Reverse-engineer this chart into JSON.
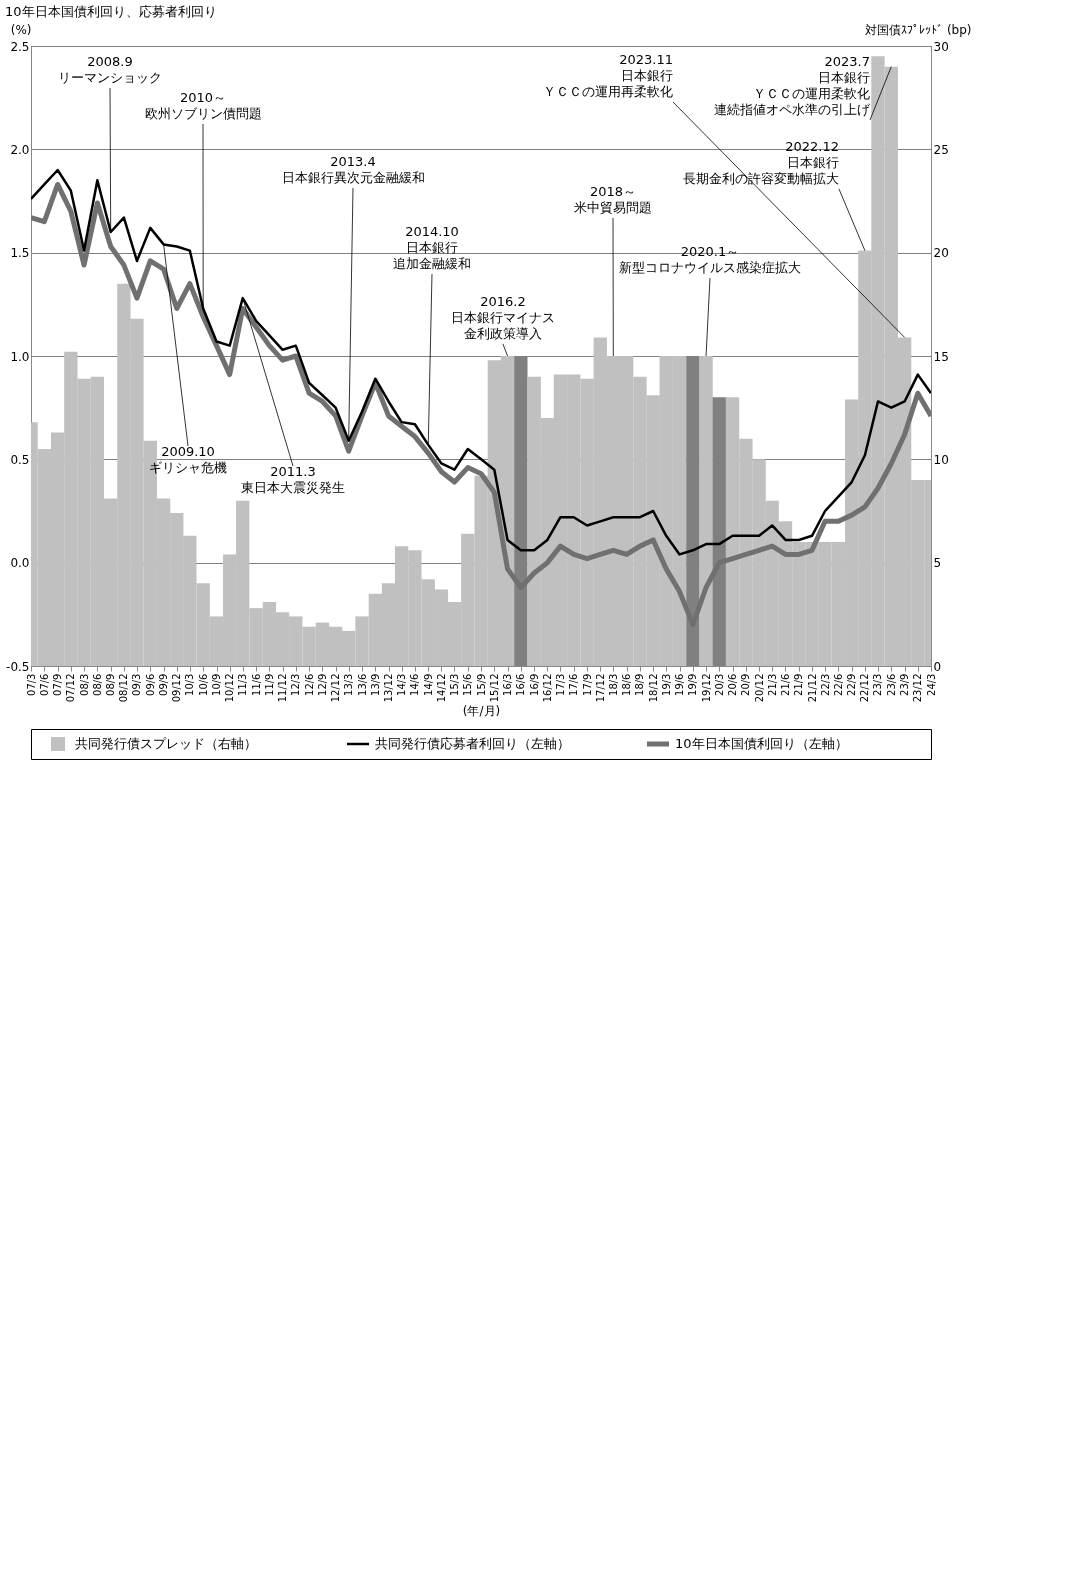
{
  "chart_data": {
    "type": "line",
    "title": "10年日本国債利回り、応募者利回り",
    "ylabel": "(%)",
    "y2label": "対国債ｽﾌﾟﾚｯﾄﾞ (bp)",
    "xlabel": "(年/月)",
    "x": [
      "2007-03",
      "2007-06",
      "2007-09",
      "2007-12",
      "2008-03",
      "2008-06",
      "2008-09",
      "2008-12",
      "2009-03",
      "2009-06",
      "2009-09",
      "2009-12",
      "2010-03",
      "2010-06",
      "2010-09",
      "2010-12",
      "2011-03",
      "2011-06",
      "2011-09",
      "2011-12",
      "2012-03",
      "2012-06",
      "2012-09",
      "2012-12",
      "2013-03",
      "2013-06",
      "2013-09",
      "2013-12",
      "2014-03",
      "2014-06",
      "2014-09",
      "2014-12",
      "2015-03",
      "2015-06",
      "2015-09",
      "2015-12",
      "2016-03",
      "2016-06",
      "2016-09",
      "2016-12",
      "2017-03",
      "2017-06",
      "2017-09",
      "2017-12",
      "2018-03",
      "2018-06",
      "2018-09",
      "2018-12",
      "2019-03",
      "2019-06",
      "2019-09",
      "2019-12",
      "2020-03",
      "2020-06",
      "2020-09",
      "2020-12",
      "2021-03",
      "2021-06",
      "2021-09",
      "2021-12",
      "2022-03",
      "2022-06",
      "2022-09",
      "2022-12",
      "2023-03",
      "2023-06",
      "2023-09",
      "2023-12",
      "2024-03"
    ],
    "series": [
      {
        "name": "共同発行債スプレッド（右軸）",
        "type": "bar",
        "axis": "y2",
        "color": "#c0c0c0",
        "colors": [
          "#c0c0c0",
          "#c0c0c0",
          "#c0c0c0",
          "#c0c0c0",
          "#c0c0c0",
          "#c0c0c0",
          "#c0c0c0",
          "#c0c0c0",
          "#c0c0c0",
          "#c0c0c0",
          "#c0c0c0",
          "#c0c0c0",
          "#c0c0c0",
          "#c0c0c0",
          "#c0c0c0",
          "#c0c0c0",
          "#c0c0c0",
          "#c0c0c0",
          "#c0c0c0",
          "#c0c0c0",
          "#c0c0c0",
          "#c0c0c0",
          "#c0c0c0",
          "#c0c0c0",
          "#c0c0c0",
          "#c0c0c0",
          "#c0c0c0",
          "#c0c0c0",
          "#c0c0c0",
          "#c0c0c0",
          "#c0c0c0",
          "#c0c0c0",
          "#c0c0c0",
          "#c0c0c0",
          "#c0c0c0",
          "#c0c0c0",
          "#c0c0c0",
          "#808080",
          "#c0c0c0",
          "#c0c0c0",
          "#c0c0c0",
          "#c0c0c0",
          "#c0c0c0",
          "#c0c0c0",
          "#c0c0c0",
          "#c0c0c0",
          "#c0c0c0",
          "#c0c0c0",
          "#c0c0c0",
          "#c0c0c0",
          "#808080",
          "#c0c0c0",
          "#808080",
          "#c0c0c0",
          "#c0c0c0",
          "#c0c0c0",
          "#c0c0c0",
          "#c0c0c0",
          "#c0c0c0",
          "#c0c0c0",
          "#c0c0c0",
          "#c0c0c0",
          "#c0c0c0",
          "#c0c0c0",
          "#c0c0c0",
          "#c0c0c0",
          "#c0c0c0",
          "#c0c0c0",
          "#c0c0c0"
        ],
        "values": [
          11.8,
          10.5,
          11.3,
          15.2,
          13.9,
          14.0,
          8.1,
          18.5,
          16.8,
          10.9,
          8.1,
          7.4,
          6.3,
          4.0,
          2.4,
          5.4,
          8.0,
          2.8,
          3.1,
          2.6,
          2.4,
          1.9,
          2.1,
          1.9,
          1.7,
          2.4,
          3.5,
          4.0,
          5.8,
          5.6,
          4.2,
          3.7,
          3.1,
          6.4,
          9.2,
          14.8,
          15.0,
          15.0,
          14.0,
          12.0,
          14.1,
          14.1,
          13.9,
          15.9,
          15.0,
          15.0,
          14.0,
          13.1,
          15.0,
          15.0,
          15.0,
          15.0,
          13.0,
          13.0,
          11.0,
          10.0,
          8.0,
          7.0,
          6.0,
          6.0,
          6.0,
          6.0,
          12.9,
          20.1,
          29.5,
          29.0,
          15.9,
          9.0,
          9.0
        ]
      },
      {
        "name": "共同発行債応募者利回り（左軸）",
        "color": "#000000",
        "values": [
          1.76,
          1.83,
          1.9,
          1.8,
          1.51,
          1.85,
          1.6,
          1.67,
          1.46,
          1.62,
          1.54,
          1.53,
          1.51,
          1.23,
          1.07,
          1.05,
          1.28,
          1.17,
          1.1,
          1.03,
          1.05,
          0.87,
          0.81,
          0.75,
          0.59,
          0.73,
          0.89,
          0.78,
          0.68,
          0.67,
          0.57,
          0.48,
          0.45,
          0.55,
          0.5,
          0.45,
          0.11,
          0.06,
          0.06,
          0.11,
          0.22,
          0.22,
          0.18,
          0.2,
          0.22,
          0.22,
          0.22,
          0.25,
          0.13,
          0.04,
          0.06,
          0.09,
          0.09,
          0.13,
          0.13,
          0.13,
          0.18,
          0.11,
          0.11,
          0.13,
          0.25,
          0.32,
          0.39,
          0.52,
          0.78,
          0.75,
          0.78,
          0.91,
          0.82
        ]
      },
      {
        "name": "10年日本国債利回り（左軸）",
        "color": "#707070",
        "values": [
          1.67,
          1.65,
          1.83,
          1.7,
          1.44,
          1.74,
          1.53,
          1.44,
          1.28,
          1.46,
          1.42,
          1.23,
          1.35,
          1.19,
          1.05,
          0.91,
          1.23,
          1.14,
          1.05,
          0.98,
          1.0,
          0.82,
          0.78,
          0.71,
          0.54,
          0.71,
          0.87,
          0.71,
          0.66,
          0.61,
          0.53,
          0.44,
          0.39,
          0.46,
          0.43,
          0.34,
          -0.03,
          -0.12,
          -0.05,
          0.0,
          0.08,
          0.04,
          0.02,
          0.04,
          0.06,
          0.04,
          0.08,
          0.11,
          -0.03,
          -0.14,
          -0.3,
          -0.12,
          0.0,
          0.02,
          0.04,
          0.06,
          0.08,
          0.04,
          0.04,
          0.06,
          0.2,
          0.2,
          0.23,
          0.27,
          0.36,
          0.48,
          0.62,
          0.82,
          0.71
        ]
      }
    ],
    "xlim": [
      "2007-03",
      "2024-03"
    ],
    "xticks": [
      {
        "value": "2007-03",
        "label": "07/3"
      },
      {
        "value": "2007-06",
        "label": "07/6"
      },
      {
        "value": "2007-09",
        "label": "07/9"
      },
      {
        "value": "2007-12",
        "label": "07/12"
      },
      {
        "value": "2008-03",
        "label": "08/3"
      },
      {
        "value": "2008-06",
        "label": "08/6"
      },
      {
        "value": "2008-09",
        "label": "08/9"
      },
      {
        "value": "2008-12",
        "label": "08/12"
      },
      {
        "value": "2009-03",
        "label": "09/3"
      },
      {
        "value": "2009-06",
        "label": "09/6"
      },
      {
        "value": "2009-09",
        "label": "09/9"
      },
      {
        "value": "2009-12",
        "label": "09/12"
      },
      {
        "value": "2010-03",
        "label": "10/3"
      },
      {
        "value": "2010-06",
        "label": "10/6"
      },
      {
        "value": "2010-09",
        "label": "10/9"
      },
      {
        "value": "2010-12",
        "label": "10/12"
      },
      {
        "value": "2011-03",
        "label": "11/3"
      },
      {
        "value": "2011-06",
        "label": "11/6"
      },
      {
        "value": "2011-09",
        "label": "11/9"
      },
      {
        "value": "2011-12",
        "label": "11/12"
      },
      {
        "value": "2012-03",
        "label": "12/3"
      },
      {
        "value": "2012-06",
        "label": "12/6"
      },
      {
        "value": "2012-09",
        "label": "12/9"
      },
      {
        "value": "2012-12",
        "label": "12/12"
      },
      {
        "value": "2013-03",
        "label": "13/3"
      },
      {
        "value": "2013-06",
        "label": "13/6"
      },
      {
        "value": "2013-09",
        "label": "13/9"
      },
      {
        "value": "2013-12",
        "label": "13/12"
      },
      {
        "value": "2014-03",
        "label": "14/3"
      },
      {
        "value": "2014-06",
        "label": "14/6"
      },
      {
        "value": "2014-09",
        "label": "14/9"
      },
      {
        "value": "2014-12",
        "label": "14/12"
      },
      {
        "value": "2015-03",
        "label": "15/3"
      },
      {
        "value": "2015-06",
        "label": "15/6"
      },
      {
        "value": "2015-09",
        "label": "15/9"
      },
      {
        "value": "2015-12",
        "label": "15/12"
      },
      {
        "value": "2016-03",
        "label": "16/3"
      },
      {
        "value": "2016-06",
        "label": "16/6"
      },
      {
        "value": "2016-09",
        "label": "16/9"
      },
      {
        "value": "2016-12",
        "label": "16/12"
      },
      {
        "value": "2017-03",
        "label": "17/3"
      },
      {
        "value": "2017-06",
        "label": "17/6"
      },
      {
        "value": "2017-09",
        "label": "17/9"
      },
      {
        "value": "2017-12",
        "label": "17/12"
      },
      {
        "value": "2018-03",
        "label": "18/3"
      },
      {
        "value": "2018-06",
        "label": "18/6"
      },
      {
        "value": "2018-09",
        "label": "18/9"
      },
      {
        "value": "2018-12",
        "label": "18/12"
      },
      {
        "value": "2019-03",
        "label": "19/3"
      },
      {
        "value": "2019-06",
        "label": "19/6"
      },
      {
        "value": "2019-09",
        "label": "19/9"
      },
      {
        "value": "2019-12",
        "label": "19/12"
      },
      {
        "value": "2020-03",
        "label": "20/3"
      },
      {
        "value": "2020-06",
        "label": "20/6"
      },
      {
        "value": "2020-09",
        "label": "20/9"
      },
      {
        "value": "2020-12",
        "label": "20/12"
      },
      {
        "value": "2021-03",
        "label": "21/3"
      },
      {
        "value": "2021-06",
        "label": "21/6"
      },
      {
        "value": "2021-09",
        "label": "21/9"
      },
      {
        "value": "2021-12",
        "label": "21/12"
      },
      {
        "value": "2022-03",
        "label": "22/3"
      },
      {
        "value": "2022-06",
        "label": "22/6"
      },
      {
        "value": "2022-09",
        "label": "22/9"
      },
      {
        "value": "2022-12",
        "label": "22/12"
      },
      {
        "value": "2023-03",
        "label": "23/3"
      },
      {
        "value": "2023-06",
        "label": "23/6"
      },
      {
        "value": "2023-09",
        "label": "23/9"
      },
      {
        "value": "2023-12",
        "label": "23/12"
      },
      {
        "value": "2024-03",
        "label": "24/3"
      }
    ],
    "ylim": [
      -0.5,
      2.5
    ],
    "yticks": [
      -0.5,
      {
        "value": 0,
        "label": "0.0"
      },
      0.5,
      {
        "value": 1,
        "label": "1.0"
      },
      1.5,
      {
        "value": 2,
        "label": "2.0"
      },
      2.5
    ],
    "y2lim": [
      0,
      30
    ],
    "y2ticks": [
      0,
      5,
      10,
      15,
      20,
      25,
      30
    ],
    "grid": "y",
    "legend": "bottom",
    "annotations": [
      {
        "text": "2008.9リーマンショック",
        "x": "2008-09",
        "y": 1.6
      },
      {
        "text": "2009.10ギリシャ危機",
        "x": "2009-09",
        "y": 1.54
      },
      {
        "text": "2010～欧州ソブリン債問題",
        "x": "2010-06",
        "y": 1.23
      },
      {
        "text": "2011.3東日本大震災発生",
        "x": "2011-03",
        "y": 1.28
      },
      {
        "text": "2013.4日本銀行異次元金融緩和",
        "x": "2013-03",
        "y": 0.59
      },
      {
        "text": "2014.10日本銀行追加金融緩和",
        "x": "2014-09",
        "y": 0.57
      },
      {
        "text": "2016.2日本銀行マイナス金利政策導入",
        "x": "2016-03",
        "y": 1.0
      },
      {
        "text": "2018～米中貿易問題",
        "x": "2018-03",
        "y": 1.0
      },
      {
        "text": "2020.1～新型コロナウイルス感染症拡大",
        "x": "2019-12",
        "y": 1.0
      },
      {
        "text": "2022.12日本銀行長期金利の許容変動幅拡大",
        "x": "2022-12",
        "y": 1.51
      },
      {
        "text": "2023.7日本銀行ＹＣＣの運用柔軟化連続指値オペ水準の引上げ",
        "x": "2023-06",
        "y": 2.4
      },
      {
        "text": "2023.11日本銀行ＹＣＣの運用再柔軟化",
        "x": "2023-09",
        "y": 1.09
      }
    ]
  }
}
